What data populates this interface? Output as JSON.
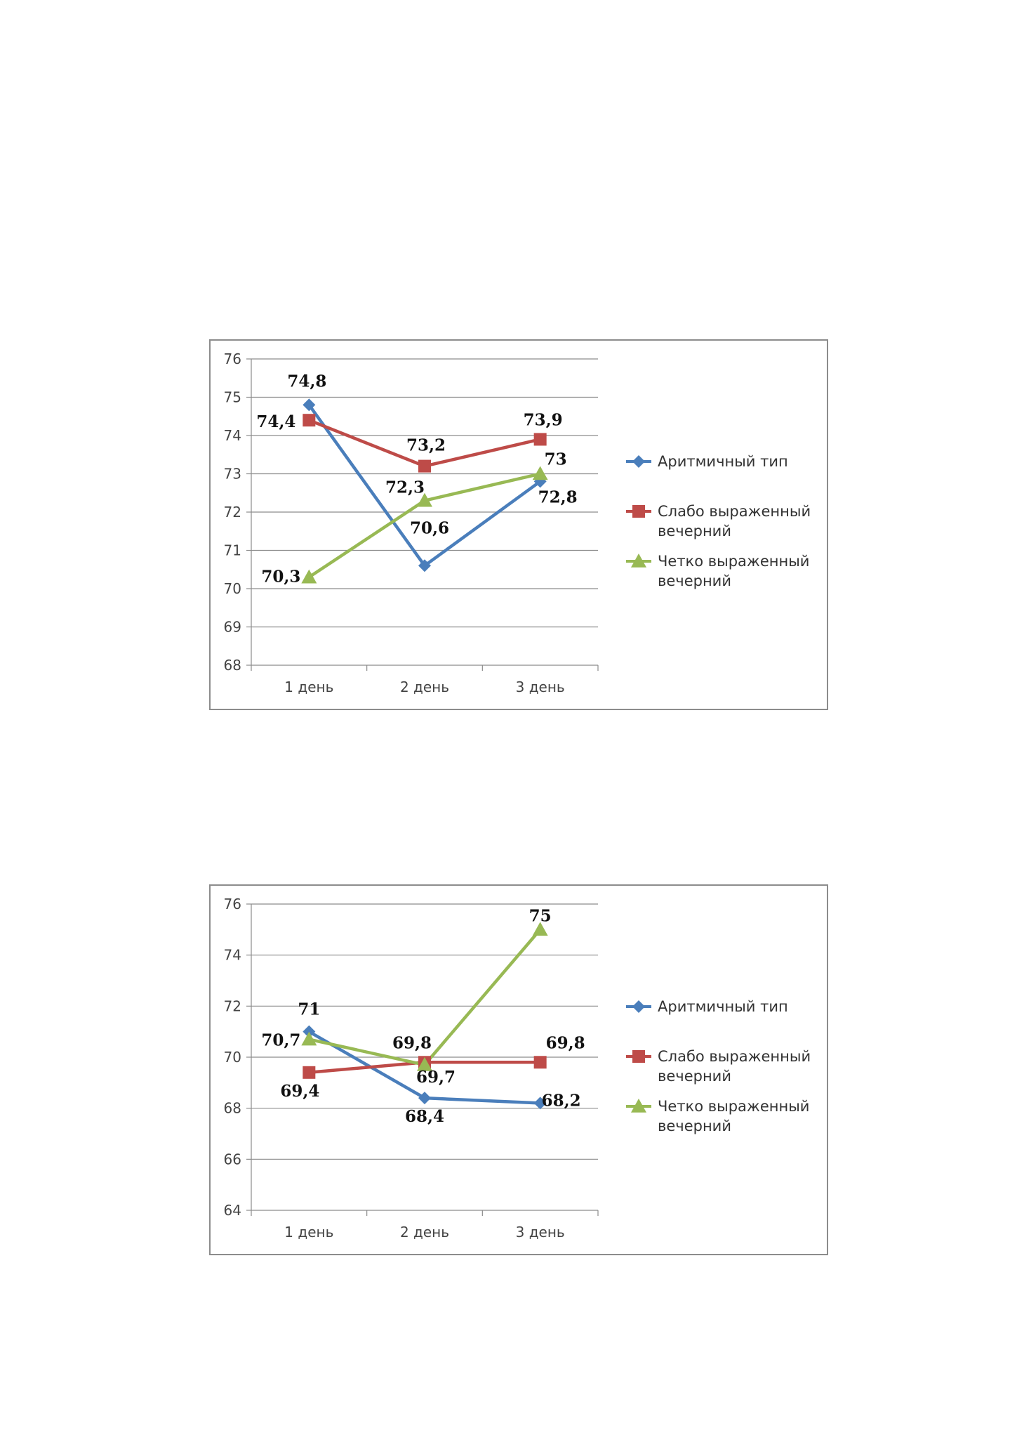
{
  "chart_data": [
    {
      "type": "line",
      "categories": [
        "1 день",
        "2 день",
        "3 день"
      ],
      "ylim": [
        68,
        76
      ],
      "yticks": [
        68,
        69,
        70,
        71,
        72,
        73,
        74,
        75,
        76
      ],
      "ytick_labels": [
        "68",
        "69",
        "70",
        "71",
        "72",
        "73",
        "74",
        "75",
        "76"
      ],
      "grid": true,
      "legend": "right",
      "series": [
        {
          "name": "Аритмичный тип",
          "values": [
            74.8,
            70.6,
            72.8
          ],
          "labels": [
            "74,8",
            "70,6",
            "72,8"
          ],
          "color": "#4a7ebb",
          "marker": "diamond"
        },
        {
          "name": "Слабо выраженный вечерний",
          "name_lines": [
            "Слабо выраженный",
            "вечерний"
          ],
          "values": [
            74.4,
            73.2,
            73.9
          ],
          "labels": [
            "74,4",
            "73,2",
            "73,9"
          ],
          "color": "#be4b48",
          "marker": "square"
        },
        {
          "name": "Четко выраженный вечерний",
          "name_lines": [
            "Четко выраженный",
            "вечерний"
          ],
          "values": [
            70.3,
            72.3,
            73
          ],
          "labels": [
            "70,3",
            "72,3",
            "73"
          ],
          "color": "#98b954",
          "marker": "triangle"
        }
      ]
    },
    {
      "type": "line",
      "categories": [
        "1 день",
        "2 день",
        "3 день"
      ],
      "ylim": [
        64,
        76
      ],
      "yticks": [
        64,
        66,
        68,
        70,
        72,
        74,
        76
      ],
      "ytick_labels": [
        "64",
        "66",
        "68",
        "70",
        "72",
        "74",
        "76"
      ],
      "grid": true,
      "legend": "right",
      "series": [
        {
          "name": "Аритмичный тип",
          "values": [
            71,
            68.4,
            68.2
          ],
          "labels": [
            "71",
            "68,4",
            "68,2"
          ],
          "color": "#4a7ebb",
          "marker": "diamond"
        },
        {
          "name": "Слабо выраженный вечерний",
          "name_lines": [
            "Слабо выраженный",
            "вечерний"
          ],
          "values": [
            69.4,
            69.8,
            69.8
          ],
          "labels": [
            "69,4",
            "69,8",
            "69,8"
          ],
          "color": "#be4b48",
          "marker": "square"
        },
        {
          "name": "Четко выраженный вечерний",
          "name_lines": [
            "Четко выраженный",
            "вечерний"
          ],
          "values": [
            70.7,
            69.7,
            75
          ],
          "labels": [
            "70,7",
            "69,7",
            "75"
          ],
          "color": "#98b954",
          "marker": "triangle"
        }
      ]
    }
  ]
}
